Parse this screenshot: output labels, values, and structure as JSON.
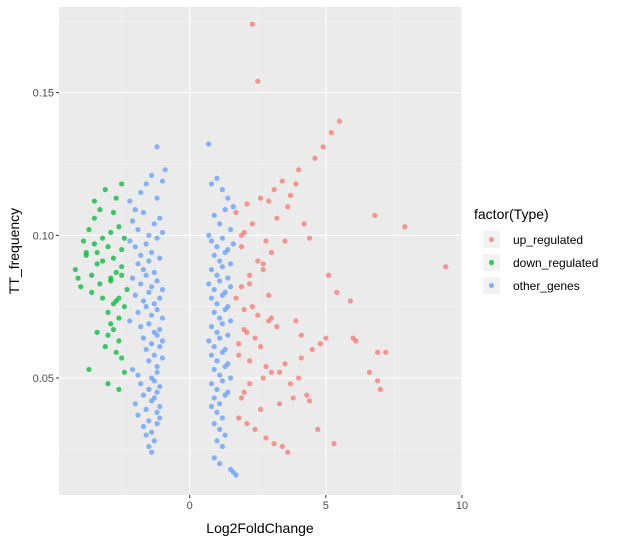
{
  "chart_data": {
    "type": "scatter",
    "title": "",
    "xlabel": "Log2FoldChange",
    "ylabel": "TT_frequency",
    "xlim": [
      -4.8,
      10
    ],
    "ylim": [
      0.009,
      0.18
    ],
    "xticks": [
      0,
      5,
      10
    ],
    "xtick_labels": [
      "0",
      "5",
      "10"
    ],
    "yticks": [
      0.05,
      0.1,
      0.15
    ],
    "ytick_labels": [
      "0.05",
      "0.10",
      "0.15"
    ],
    "grid": true,
    "background": "#ebebeb",
    "legend": {
      "title": "factor(Type)",
      "placement": "right",
      "entries": [
        "up_regulated",
        "down_regulated",
        "other_genes"
      ]
    },
    "series": [
      {
        "name": "up_regulated",
        "color": "#f8766d",
        "x": [
          2.3,
          2.5,
          5.5,
          5.2,
          4.9,
          4.6,
          4.0,
          3.9,
          3.7,
          3.6,
          3.2,
          2.9,
          2.8,
          4.4,
          4.2,
          6.8,
          7.9,
          9.4,
          5.1,
          5.4,
          5.9,
          6.0,
          6.1,
          6.6,
          6.9,
          7.0,
          7.2,
          6.9,
          5.0,
          4.8,
          4.5,
          4.1,
          3.5,
          3.0,
          2.7,
          2.2,
          2.0,
          1.9,
          3.3,
          3.8,
          2.6,
          1.8,
          2.1,
          2.4,
          2.8,
          3.1,
          3.4,
          3.6,
          4.3,
          4.0,
          3.9,
          2.3,
          2.5,
          2.9,
          3.2,
          2.0,
          1.7,
          1.9,
          2.2,
          2.7,
          3.0,
          3.5,
          2.1,
          2.4,
          2.6,
          1.8,
          2.2,
          2.8,
          3.3,
          3.7,
          2.5,
          1.9,
          2.0,
          2.3,
          1.7,
          2.1,
          2.6,
          3.1,
          3.4,
          4.7,
          4.4,
          5.3,
          1.8,
          2.0,
          2.9,
          2.2,
          2.7,
          1.9,
          3.0,
          4.1
        ],
        "y": [
          0.174,
          0.154,
          0.14,
          0.136,
          0.131,
          0.127,
          0.123,
          0.118,
          0.114,
          0.11,
          0.106,
          0.112,
          0.098,
          0.099,
          0.104,
          0.107,
          0.103,
          0.089,
          0.086,
          0.08,
          0.077,
          0.064,
          0.063,
          0.052,
          0.049,
          0.046,
          0.059,
          0.059,
          0.064,
          0.062,
          0.06,
          0.057,
          0.055,
          0.052,
          0.05,
          0.048,
          0.045,
          0.043,
          0.041,
          0.043,
          0.039,
          0.036,
          0.034,
          0.032,
          0.029,
          0.027,
          0.026,
          0.024,
          0.044,
          0.05,
          0.07,
          0.075,
          0.072,
          0.07,
          0.068,
          0.074,
          0.078,
          0.082,
          0.086,
          0.09,
          0.094,
          0.098,
          0.066,
          0.064,
          0.061,
          0.058,
          0.056,
          0.054,
          0.052,
          0.048,
          0.091,
          0.096,
          0.101,
          0.104,
          0.108,
          0.111,
          0.113,
          0.116,
          0.119,
          0.032,
          0.042,
          0.027,
          0.062,
          0.067,
          0.079,
          0.083,
          0.088,
          0.1,
          0.071,
          0.065
        ]
      },
      {
        "name": "down_regulated",
        "color": "#00ba38",
        "x": [
          -4.2,
          -4.0,
          -3.8,
          -3.6,
          -3.4,
          -3.2,
          -3.0,
          -2.9,
          -2.8,
          -2.6,
          -3.5,
          -3.3,
          -3.1,
          -2.7,
          -2.5,
          -3.9,
          -3.7,
          -3.5,
          -3.2,
          -2.9,
          -2.6,
          -3.4,
          -3.0,
          -2.8,
          -2.5,
          -3.6,
          -3.3,
          -2.9,
          -2.7,
          -2.5,
          -3.0,
          -2.8,
          -2.6,
          -3.1,
          -2.7,
          -2.5,
          -3.7,
          -3.4,
          -3.0,
          -2.6,
          -2.4,
          -2.6,
          -2.3,
          -2.7,
          -2.4,
          -2.9,
          -3.2,
          -2.5,
          -2.4,
          -2.8,
          -3.8,
          -4.1,
          -3.5
        ],
        "y": [
          0.088,
          0.082,
          0.093,
          0.086,
          0.09,
          0.078,
          0.073,
          0.069,
          0.076,
          0.071,
          0.112,
          0.109,
          0.116,
          0.113,
          0.118,
          0.098,
          0.102,
          0.106,
          0.099,
          0.101,
          0.103,
          0.094,
          0.096,
          0.092,
          0.095,
          0.08,
          0.083,
          0.085,
          0.087,
          0.089,
          0.065,
          0.067,
          0.063,
          0.061,
          0.059,
          0.057,
          0.053,
          0.066,
          0.048,
          0.046,
          0.052,
          0.078,
          0.081,
          0.077,
          0.075,
          0.084,
          0.091,
          0.086,
          0.099,
          0.108,
          0.094,
          0.085,
          0.097
        ]
      },
      {
        "name": "other_genes",
        "color": "#619cff",
        "x": [
          -1.2,
          0.7,
          -2.2,
          -2.0,
          -1.8,
          -1.6,
          -1.4,
          -1.2,
          -1.0,
          -0.9,
          -2.1,
          -1.9,
          -1.7,
          -1.5,
          -1.3,
          -1.1,
          -2.2,
          -2.0,
          -1.8,
          -1.6,
          -1.4,
          -1.2,
          -1.0,
          -1.9,
          -1.7,
          -1.5,
          -1.3,
          -1.1,
          -2.1,
          -1.8,
          -1.6,
          -1.4,
          -1.2,
          -1.0,
          -2.0,
          -1.7,
          -1.5,
          -1.3,
          -1.1,
          -1.9,
          -1.6,
          -1.4,
          -1.2,
          -1.0,
          -2.2,
          -1.8,
          -1.5,
          -1.3,
          -1.1,
          -1.7,
          -1.4,
          -1.2,
          -1.0,
          -1.6,
          -1.3,
          -1.1,
          -1.5,
          -1.2,
          -1.0,
          -2.1,
          -1.9,
          -1.4,
          -1.2,
          -1.8,
          -1.5,
          -1.3,
          -1.1,
          -1.7,
          -1.4,
          -1.2,
          -2.0,
          -1.6,
          -1.3,
          -1.1,
          -1.9,
          -1.5,
          -1.2,
          -1.7,
          -1.4,
          -1.1,
          -1.6,
          -1.3,
          -1.2,
          -1.5,
          -1.4,
          0.8,
          1.0,
          1.2,
          1.4,
          1.6,
          0.9,
          1.1,
          1.3,
          1.5,
          0.7,
          0.8,
          1.0,
          1.2,
          1.4,
          1.6,
          0.9,
          1.1,
          1.3,
          1.5,
          0.8,
          1.0,
          1.2,
          1.4,
          0.7,
          0.9,
          1.1,
          1.3,
          1.5,
          0.8,
          1.0,
          1.2,
          1.4,
          0.9,
          1.1,
          1.3,
          1.5,
          0.8,
          1.0,
          1.2,
          1.4,
          0.7,
          0.9,
          1.1,
          1.3,
          0.8,
          1.0,
          1.2,
          1.4,
          0.9,
          1.1,
          1.3,
          1.5,
          0.8,
          1.0,
          1.2,
          1.4,
          0.9,
          1.1,
          1.3,
          0.8,
          1.0,
          1.2,
          0.9,
          1.1,
          1.3,
          1.0,
          1.2,
          0.9,
          1.1,
          1.5,
          1.6,
          1.7
        ],
        "y": [
          0.131,
          0.132,
          0.112,
          0.109,
          0.115,
          0.118,
          0.121,
          0.113,
          0.119,
          0.123,
          0.105,
          0.102,
          0.108,
          0.1,
          0.104,
          0.106,
          0.098,
          0.096,
          0.093,
          0.097,
          0.094,
          0.099,
          0.101,
          0.09,
          0.088,
          0.091,
          0.087,
          0.092,
          0.085,
          0.083,
          0.086,
          0.082,
          0.084,
          0.081,
          0.079,
          0.077,
          0.08,
          0.076,
          0.078,
          0.073,
          0.075,
          0.072,
          0.074,
          0.071,
          0.07,
          0.068,
          0.069,
          0.066,
          0.067,
          0.064,
          0.062,
          0.065,
          0.063,
          0.06,
          0.058,
          0.061,
          0.056,
          0.054,
          0.057,
          0.053,
          0.051,
          0.05,
          0.052,
          0.048,
          0.046,
          0.049,
          0.047,
          0.044,
          0.042,
          0.045,
          0.041,
          0.039,
          0.043,
          0.04,
          0.037,
          0.035,
          0.038,
          0.033,
          0.031,
          0.036,
          0.03,
          0.028,
          0.034,
          0.026,
          0.024,
          0.118,
          0.12,
          0.116,
          0.113,
          0.11,
          0.107,
          0.104,
          0.109,
          0.102,
          0.1,
          0.098,
          0.096,
          0.099,
          0.095,
          0.097,
          0.093,
          0.091,
          0.094,
          0.09,
          0.088,
          0.086,
          0.089,
          0.085,
          0.083,
          0.081,
          0.084,
          0.08,
          0.082,
          0.078,
          0.076,
          0.079,
          0.075,
          0.073,
          0.071,
          0.074,
          0.07,
          0.068,
          0.066,
          0.069,
          0.065,
          0.063,
          0.061,
          0.064,
          0.06,
          0.058,
          0.056,
          0.059,
          0.055,
          0.053,
          0.051,
          0.054,
          0.05,
          0.048,
          0.046,
          0.049,
          0.045,
          0.043,
          0.041,
          0.044,
          0.04,
          0.038,
          0.036,
          0.034,
          0.032,
          0.03,
          0.028,
          0.026,
          0.022,
          0.02,
          0.018,
          0.017,
          0.016
        ]
      }
    ]
  }
}
